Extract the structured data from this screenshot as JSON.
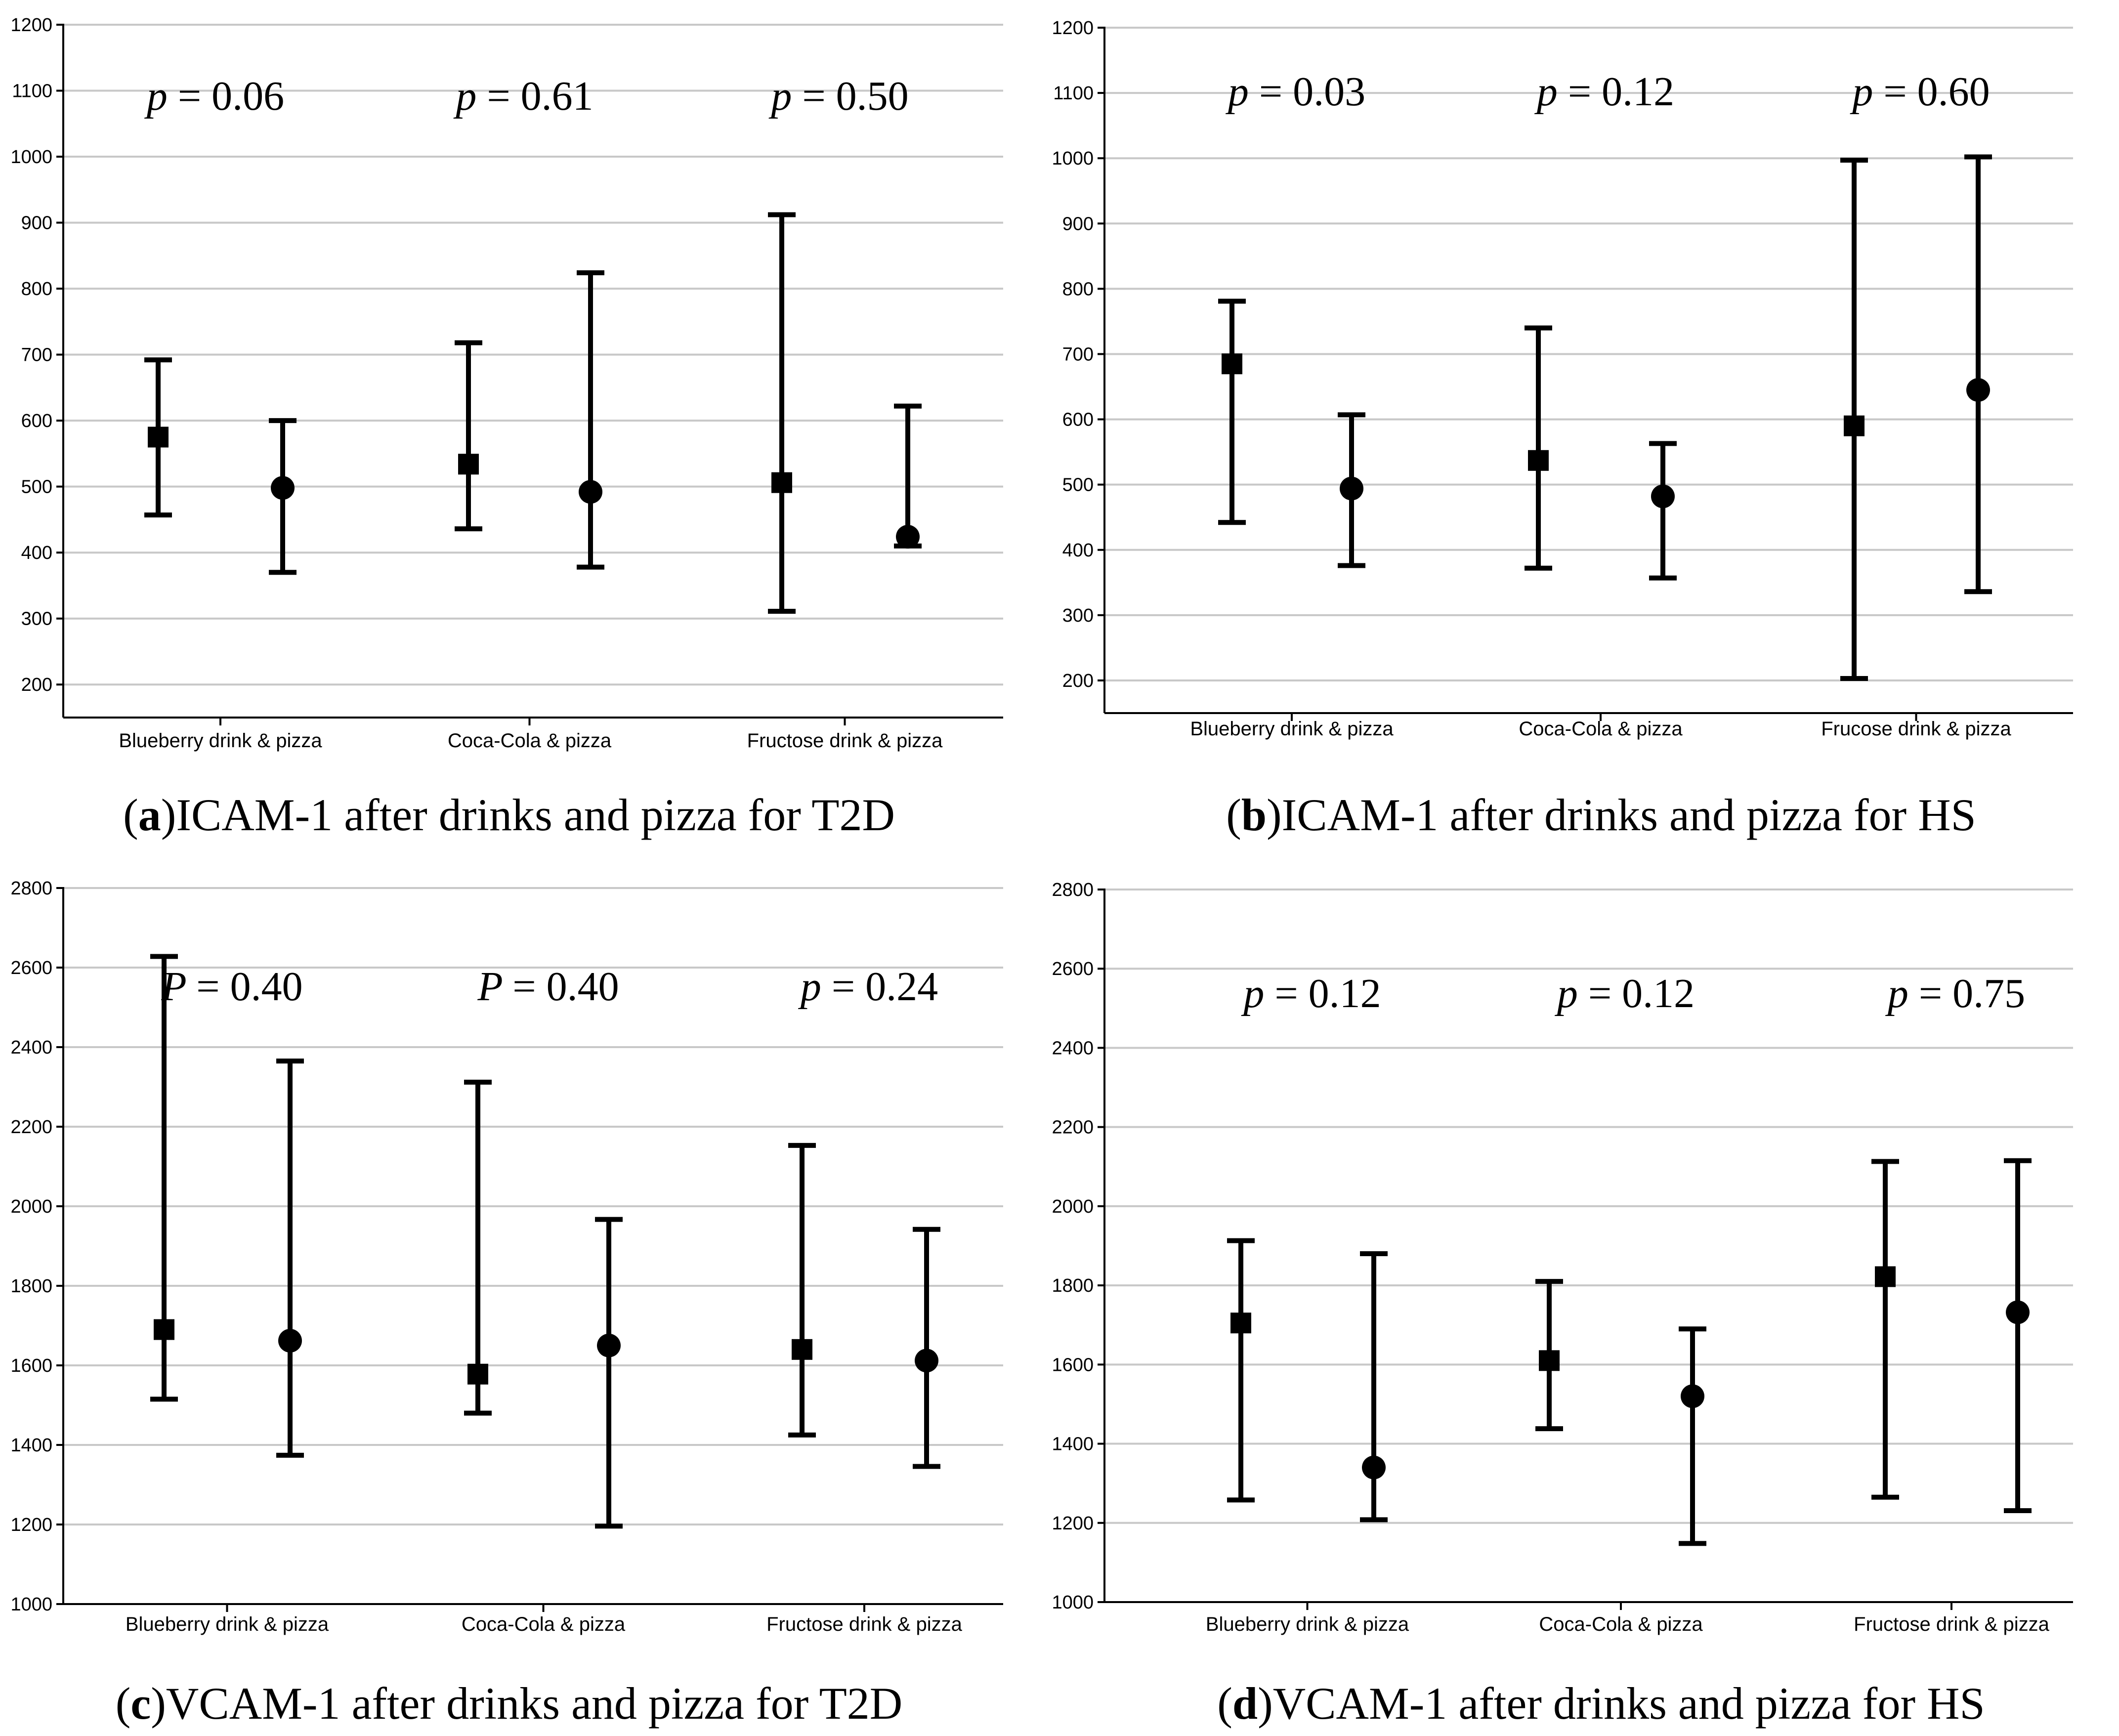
{
  "chart_data": [
    {
      "panel": "a",
      "type": "errorbar",
      "title": "ICAM-1 after drinks and pizza for T2D",
      "caption_letter": "a",
      "caption_text": "ICAM-1 after drinks and pizza for T2D",
      "ylim": [
        150,
        1200
      ],
      "yticks": [
        200,
        300,
        400,
        500,
        600,
        700,
        800,
        900,
        1000,
        1100,
        1200
      ],
      "categories": [
        "Blueberry drink & pizza",
        "Coca-Cola & pizza",
        "Fructose drink & pizza"
      ],
      "groups": [
        {
          "p_letter": "p",
          "p_value": "= 0.06",
          "points": [
            {
              "marker": "square",
              "mean": 575,
              "low": 457,
              "high": 692
            },
            {
              "marker": "circle",
              "mean": 498,
              "low": 370,
              "high": 600
            }
          ]
        },
        {
          "p_letter": "p",
          "p_value": "= 0.61",
          "points": [
            {
              "marker": "square",
              "mean": 534,
              "low": 436,
              "high": 718
            },
            {
              "marker": "circle",
              "mean": 492,
              "low": 378,
              "high": 824
            }
          ]
        },
        {
          "p_letter": "p",
          "p_value": "= 0.50",
          "points": [
            {
              "marker": "square",
              "mean": 506,
              "low": 311,
              "high": 912
            },
            {
              "marker": "circle",
              "mean": 424,
              "low": 410,
              "high": 622
            }
          ]
        }
      ]
    },
    {
      "panel": "b",
      "type": "errorbar",
      "title": "ICAM-1 after drinks and pizza for HS",
      "caption_letter": "b",
      "caption_text": "ICAM-1 after drinks and pizza for HS",
      "ylim": [
        150,
        1200
      ],
      "yticks": [
        200,
        300,
        400,
        500,
        600,
        700,
        800,
        900,
        1000,
        1100,
        1200
      ],
      "categories": [
        "Blueberry  drink & pizza",
        "Coca-Cola & pizza",
        "Frucose drink & pizza"
      ],
      "groups": [
        {
          "p_letter": "p",
          "p_value": "= 0.03",
          "points": [
            {
              "marker": "square",
              "mean": 685,
              "low": 442,
              "high": 781
            },
            {
              "marker": "circle",
              "mean": 494,
              "low": 376,
              "high": 607
            }
          ]
        },
        {
          "p_letter": "p",
          "p_value": "= 0.12",
          "points": [
            {
              "marker": "square",
              "mean": 537,
              "low": 372,
              "high": 740
            },
            {
              "marker": "circle",
              "mean": 482,
              "low": 357,
              "high": 563
            }
          ]
        },
        {
          "p_letter": "p",
          "p_value": "= 0.60",
          "points": [
            {
              "marker": "square",
              "mean": 590,
              "low": 203,
              "high": 997
            },
            {
              "marker": "circle",
              "mean": 645,
              "low": 336,
              "high": 1002
            }
          ]
        }
      ]
    },
    {
      "panel": "c",
      "type": "errorbar",
      "title": "VCAM-1 after drinks and pizza for T2D",
      "caption_letter": "c",
      "caption_text": "VCAM-1 after drinks and pizza for T2D",
      "ylim": [
        1000,
        2800
      ],
      "yticks": [
        1000,
        1200,
        1400,
        1600,
        1800,
        2000,
        2200,
        2400,
        2600,
        2800
      ],
      "categories": [
        "Blueberry  drink & pizza",
        "Coca-Cola & pizza",
        "Fructose drink & pizza"
      ],
      "groups": [
        {
          "p_letter": "P",
          "p_value": "= 0.40",
          "points": [
            {
              "marker": "square",
              "mean": 1690,
              "low": 1515,
              "high": 2628
            },
            {
              "marker": "circle",
              "mean": 1662,
              "low": 1374,
              "high": 2365
            }
          ]
        },
        {
          "p_letter": "P",
          "p_value": "= 0.40",
          "points": [
            {
              "marker": "square",
              "mean": 1578,
              "low": 1480,
              "high": 2312
            },
            {
              "marker": "circle",
              "mean": 1650,
              "low": 1196,
              "high": 1967
            }
          ]
        },
        {
          "p_letter": "p",
          "p_value": "= 0.24",
          "points": [
            {
              "marker": "square",
              "mean": 1640,
              "low": 1425,
              "high": 2153
            },
            {
              "marker": "circle",
              "mean": 1612,
              "low": 1346,
              "high": 1942
            }
          ]
        }
      ]
    },
    {
      "panel": "d",
      "type": "errorbar",
      "title": "VCAM-1 after drinks and pizza for HS",
      "caption_letter": "d",
      "caption_text": "VCAM-1 after drinks and pizza for HS",
      "ylim": [
        1000,
        2800
      ],
      "yticks": [
        1000,
        1200,
        1400,
        1600,
        1800,
        2000,
        2200,
        2400,
        2600,
        2800
      ],
      "categories": [
        "Blueberry  drink & pizza",
        "Coca-Cola & pizza",
        "Fructose drink & pizza"
      ],
      "groups": [
        {
          "p_letter": "p",
          "p_value": "= 0.12",
          "points": [
            {
              "marker": "square",
              "mean": 1705,
              "low": 1258,
              "high": 1913
            },
            {
              "marker": "circle",
              "mean": 1340,
              "low": 1208,
              "high": 1880
            }
          ]
        },
        {
          "p_letter": "p",
          "p_value": "= 0.12",
          "points": [
            {
              "marker": "square",
              "mean": 1610,
              "low": 1438,
              "high": 1810
            },
            {
              "marker": "circle",
              "mean": 1520,
              "low": 1148,
              "high": 1690
            }
          ]
        },
        {
          "p_letter": "p",
          "p_value": "= 0.75",
          "points": [
            {
              "marker": "square",
              "mean": 1822,
              "low": 1265,
              "high": 2113
            },
            {
              "marker": "circle",
              "mean": 1732,
              "low": 1231,
              "high": 2115
            }
          ]
        }
      ]
    }
  ]
}
